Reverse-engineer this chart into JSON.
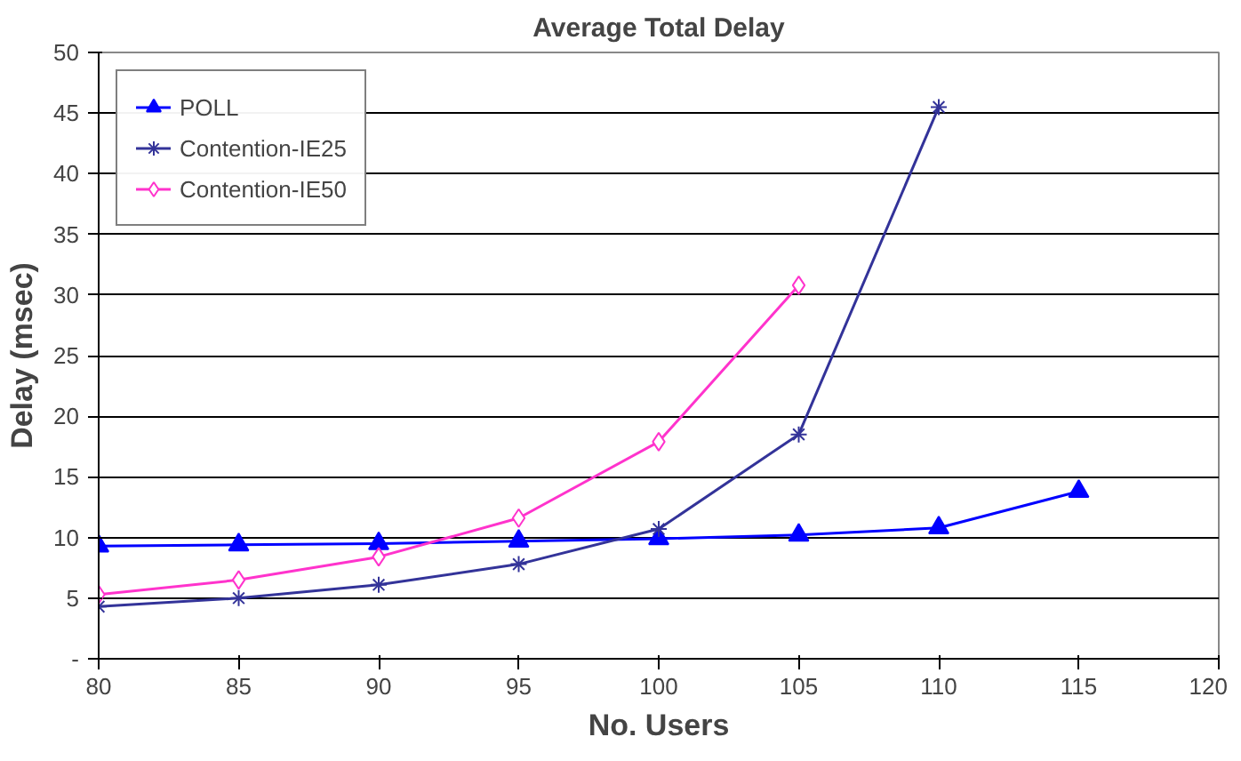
{
  "chart_data": {
    "type": "line",
    "title": "Average Total Delay",
    "xlabel": "No. Users",
    "ylabel": "Delay (msec)",
    "x": [
      80,
      85,
      90,
      95,
      100,
      105,
      110,
      115
    ],
    "series": [
      {
        "name": "POLL",
        "color": "#0000ff",
        "marker": "triangle",
        "values": [
          9.3,
          9.4,
          9.5,
          9.7,
          9.9,
          10.2,
          10.8,
          13.8
        ]
      },
      {
        "name": "Contention-IE25",
        "color": "#333399",
        "marker": "cross",
        "values": [
          4.3,
          5.0,
          6.1,
          7.8,
          10.7,
          18.5,
          45.5,
          null
        ]
      },
      {
        "name": "Contention-IE50",
        "color": "#ff33cc",
        "marker": "diamond",
        "values": [
          5.3,
          6.5,
          8.4,
          11.6,
          17.9,
          30.8,
          null,
          null
        ]
      }
    ],
    "xlim": [
      80,
      120
    ],
    "xticks": [
      80,
      85,
      90,
      95,
      100,
      105,
      110,
      115,
      120
    ],
    "ylim": [
      0,
      50
    ],
    "yticks": [
      {
        "value": 0,
        "label": "-"
      },
      5,
      10,
      15,
      20,
      25,
      30,
      35,
      40,
      45,
      50
    ],
    "grid": "y",
    "legend": "top left",
    "line_style": "solid"
  }
}
